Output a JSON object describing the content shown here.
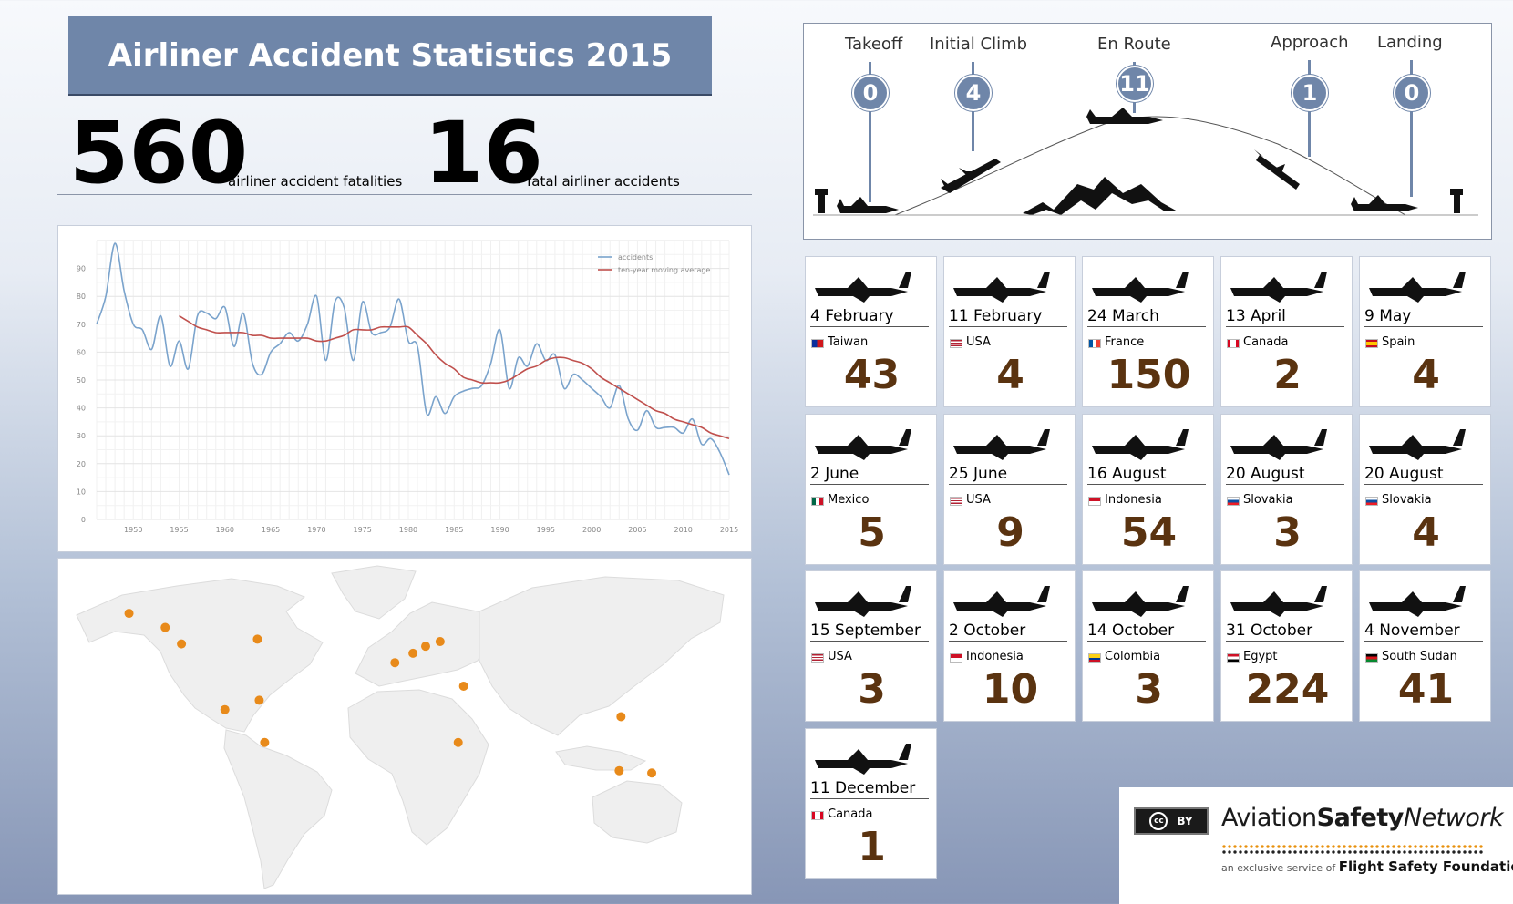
{
  "title": "Airliner Accident Statistics  2015",
  "stats": {
    "fatalities_value": "560",
    "fatalities_label": "airliner accident fatalities",
    "accidents_value": "16",
    "accidents_label": "fatal airliner accidents"
  },
  "phases": [
    {
      "label": "Takeoff",
      "count": "0"
    },
    {
      "label": "Initial Climb",
      "count": "4"
    },
    {
      "label": "En Route",
      "count": "11"
    },
    {
      "label": "Approach",
      "count": "1"
    },
    {
      "label": "Landing",
      "count": "0"
    }
  ],
  "accidents": [
    {
      "date": "4 February",
      "country": "Taiwan",
      "fatalities": "43"
    },
    {
      "date": "11 February",
      "country": "USA",
      "fatalities": "4"
    },
    {
      "date": "24 March",
      "country": "France",
      "fatalities": "150"
    },
    {
      "date": "13 April",
      "country": "Canada",
      "fatalities": "2"
    },
    {
      "date": "9 May",
      "country": "Spain",
      "fatalities": "4"
    },
    {
      "date": "2 June",
      "country": "Mexico",
      "fatalities": "5"
    },
    {
      "date": "25 June",
      "country": "USA",
      "fatalities": "9"
    },
    {
      "date": "16 August",
      "country": "Indonesia",
      "fatalities": "54"
    },
    {
      "date": "20 August",
      "country": "Slovakia",
      "fatalities": "3"
    },
    {
      "date": "20 August",
      "country": "Slovakia",
      "fatalities": "4"
    },
    {
      "date": "15 September",
      "country": "USA",
      "fatalities": "3"
    },
    {
      "date": "2 October",
      "country": "Indonesia",
      "fatalities": "10"
    },
    {
      "date": "14 October",
      "country": "Colombia",
      "fatalities": "3"
    },
    {
      "date": "31 October",
      "country": "Egypt",
      "fatalities": "224"
    },
    {
      "date": "4 November",
      "country": "South Sudan",
      "fatalities": "41"
    },
    {
      "date": "11 December",
      "country": "Canada",
      "fatalities": "1"
    }
  ],
  "chart_data": {
    "type": "line",
    "title": "",
    "xlabel": "",
    "ylabel": "",
    "xlim": [
      1946,
      2015
    ],
    "ylim": [
      0,
      100
    ],
    "x_ticks": [
      1950,
      1955,
      1960,
      1965,
      1970,
      1975,
      1980,
      1985,
      1990,
      1995,
      2000,
      2005,
      2010,
      2015
    ],
    "y_ticks": [
      0,
      10,
      20,
      30,
      40,
      50,
      60,
      70,
      80,
      90
    ],
    "grid": true,
    "legend": "top-right",
    "series": [
      {
        "name": "accidents",
        "color": "#7aa3cc",
        "x": [
          1946,
          1947,
          1948,
          1949,
          1950,
          1951,
          1952,
          1953,
          1954,
          1955,
          1956,
          1957,
          1958,
          1959,
          1960,
          1961,
          1962,
          1963,
          1964,
          1965,
          1966,
          1967,
          1968,
          1969,
          1970,
          1971,
          1972,
          1973,
          1974,
          1975,
          1976,
          1977,
          1978,
          1979,
          1980,
          1981,
          1982,
          1983,
          1984,
          1985,
          1986,
          1987,
          1988,
          1989,
          1990,
          1991,
          1992,
          1993,
          1994,
          1995,
          1996,
          1997,
          1998,
          1999,
          2000,
          2001,
          2002,
          2003,
          2004,
          2005,
          2006,
          2007,
          2008,
          2009,
          2010,
          2011,
          2012,
          2013,
          2014,
          2015
        ],
        "y": [
          70,
          80,
          99,
          82,
          70,
          68,
          61,
          73,
          55,
          64,
          54,
          73,
          74,
          72,
          76,
          62,
          74,
          56,
          52,
          60,
          63,
          67,
          64,
          70,
          80,
          57,
          78,
          76,
          57,
          78,
          67,
          67,
          69,
          79,
          64,
          62,
          38,
          44,
          38,
          44,
          46,
          47,
          48,
          56,
          68,
          47,
          58,
          55,
          63,
          57,
          59,
          47,
          52,
          50,
          47,
          44,
          40,
          48,
          36,
          32,
          39,
          33,
          33,
          33,
          31,
          36,
          27,
          29,
          24,
          16
        ]
      },
      {
        "name": "ten-year moving average",
        "color": "#c0504d",
        "x": [
          1955,
          1956,
          1957,
          1958,
          1959,
          1960,
          1961,
          1962,
          1963,
          1964,
          1965,
          1966,
          1967,
          1968,
          1969,
          1970,
          1971,
          1972,
          1973,
          1974,
          1975,
          1976,
          1977,
          1978,
          1979,
          1980,
          1981,
          1982,
          1983,
          1984,
          1985,
          1986,
          1987,
          1988,
          1989,
          1990,
          1991,
          1992,
          1993,
          1994,
          1995,
          1996,
          1997,
          1998,
          1999,
          2000,
          2001,
          2002,
          2003,
          2004,
          2005,
          2006,
          2007,
          2008,
          2009,
          2010,
          2011,
          2012,
          2013,
          2014,
          2015
        ],
        "y": [
          73,
          71,
          69,
          68,
          67,
          67,
          67,
          67,
          66,
          66,
          65,
          65,
          65,
          65,
          65,
          64,
          64,
          65,
          66,
          68,
          68,
          68,
          69,
          69,
          69,
          69,
          66,
          63,
          59,
          56,
          54,
          51,
          50,
          49,
          49,
          49,
          50,
          52,
          54,
          55,
          57,
          58,
          58,
          57,
          56,
          54,
          51,
          49,
          47,
          45,
          43,
          41,
          39,
          38,
          36,
          35,
          34,
          33,
          31,
          30,
          29
        ]
      }
    ]
  },
  "map": {
    "marker_color": "#e88a1a",
    "markers": [
      {
        "lon": -151,
        "lat": 61
      },
      {
        "lon": -131,
        "lat": 55
      },
      {
        "lon": -122,
        "lat": 48
      },
      {
        "lon": -80,
        "lat": 50
      },
      {
        "lon": -98,
        "lat": 20
      },
      {
        "lon": -79,
        "lat": 24
      },
      {
        "lon": -76,
        "lat": 6
      },
      {
        "lon": 6,
        "lat": 44
      },
      {
        "lon": 13,
        "lat": 47
      },
      {
        "lon": -4,
        "lat": 40
      },
      {
        "lon": 21,
        "lat": 49
      },
      {
        "lon": 34,
        "lat": 30
      },
      {
        "lon": 31,
        "lat": 6
      },
      {
        "lon": 121,
        "lat": 17
      },
      {
        "lon": 120,
        "lat": -6
      },
      {
        "lon": 138,
        "lat": -7
      }
    ]
  },
  "logo": {
    "cc_text": "cc",
    "by_text": "BY",
    "name_part1": "Aviation",
    "name_part2": "Safety",
    "name_part3": "Network",
    "tagline_small": "an exclusive service of",
    "tagline_bold": "Flight Safety Foundation"
  }
}
